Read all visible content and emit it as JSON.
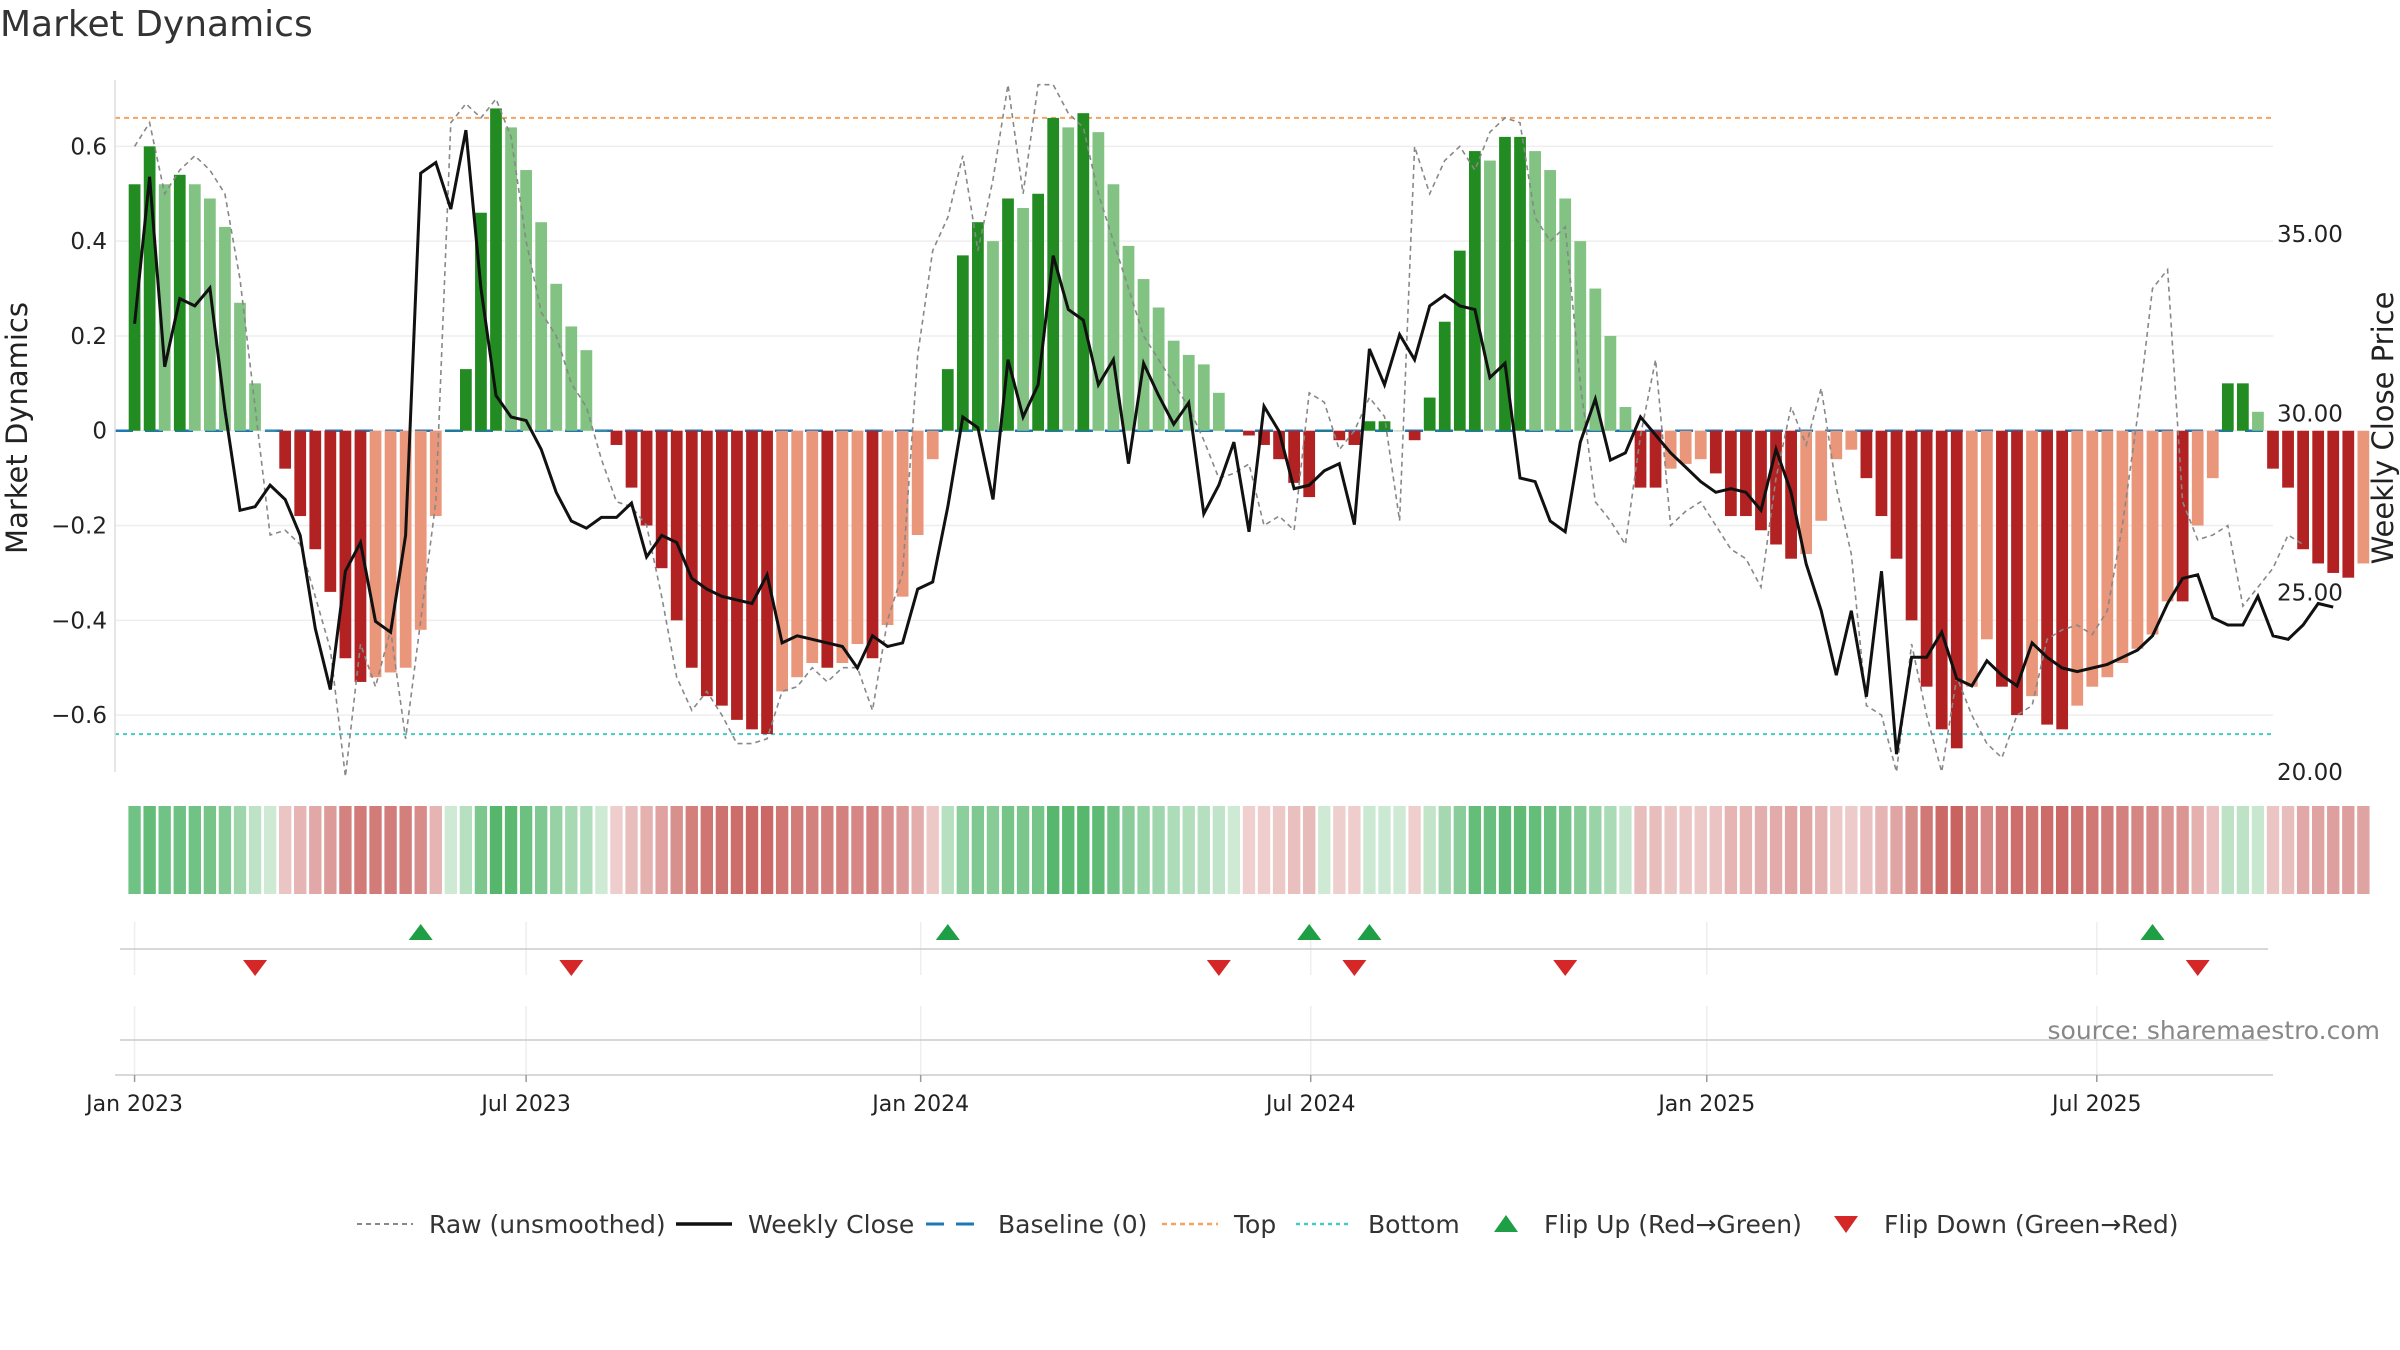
{
  "page": {
    "title": "Market Dynamics"
  },
  "source": "source: sharemaestro.com",
  "chart_data": {
    "type": "bar",
    "title": "Market Dynamics",
    "ylabel": "Market Dynamics",
    "y2label": "Weekly Close Price",
    "ylim": [
      -0.72,
      0.74
    ],
    "y2lim": [
      20.0,
      39.3
    ],
    "y_ticks": [
      {
        "v": 0.6,
        "label": "0.6"
      },
      {
        "v": 0.4,
        "label": "0.4"
      },
      {
        "v": 0.2,
        "label": "0.2"
      },
      {
        "v": 0,
        "label": "0"
      },
      {
        "v": -0.2,
        "label": "−0.2"
      },
      {
        "v": -0.4,
        "label": "−0.4"
      },
      {
        "v": -0.6,
        "label": "−0.6"
      }
    ],
    "y2_ticks": [
      {
        "v": 35,
        "label": "35.00"
      },
      {
        "v": 30,
        "label": "30.00"
      },
      {
        "v": 25,
        "label": "25.00"
      },
      {
        "v": 20,
        "label": "20.00"
      }
    ],
    "x_ticks": [
      {
        "week": 0,
        "label": "Jan 2023"
      },
      {
        "week": 26,
        "label": "Jul 2023"
      },
      {
        "week": 52.2,
        "label": "Jan 2024"
      },
      {
        "week": 78.1,
        "label": "Jul 2024"
      },
      {
        "week": 104.4,
        "label": "Jan 2025"
      },
      {
        "week": 130.3,
        "label": "Jul 2025"
      }
    ],
    "x_range_weeks": [
      -1.3,
      142
    ],
    "grid": true,
    "top_line": 0.66,
    "bottom_line": -0.64,
    "baseline": 0,
    "legend_position": "bottom-center",
    "dynamics": [
      0.52,
      0.6,
      0.52,
      0.54,
      0.52,
      0.49,
      0.43,
      0.27,
      0.1,
      0,
      -0.08,
      -0.18,
      -0.25,
      -0.34,
      -0.48,
      -0.53,
      -0.52,
      -0.51,
      -0.5,
      -0.42,
      -0.18,
      0,
      0.13,
      0.46,
      0.68,
      0.64,
      0.55,
      0.44,
      0.31,
      0.22,
      0.17,
      0,
      -0.03,
      -0.12,
      -0.2,
      -0.29,
      -0.4,
      -0.5,
      -0.56,
      -0.58,
      -0.61,
      -0.63,
      -0.64,
      -0.55,
      -0.52,
      -0.49,
      -0.5,
      -0.49,
      -0.45,
      -0.48,
      -0.41,
      -0.35,
      -0.22,
      -0.06,
      0.13,
      0.37,
      0.44,
      0.4,
      0.49,
      0.47,
      0.5,
      0.66,
      0.64,
      0.67,
      0.63,
      0.52,
      0.39,
      0.32,
      0.26,
      0.19,
      0.16,
      0.14,
      0.08,
      0,
      -0.01,
      -0.03,
      -0.06,
      -0.11,
      -0.14,
      0,
      -0.02,
      -0.03,
      0.02,
      0.02,
      0,
      -0.02,
      0.07,
      0.23,
      0.38,
      0.59,
      0.57,
      0.62,
      0.62,
      0.59,
      0.55,
      0.49,
      0.4,
      0.3,
      0.2,
      0.05,
      -0.12,
      -0.12,
      -0.08,
      -0.07,
      -0.06,
      -0.09,
      -0.18,
      -0.18,
      -0.21,
      -0.24,
      -0.27,
      -0.26,
      -0.19,
      -0.06,
      -0.04,
      -0.1,
      -0.18,
      -0.27,
      -0.4,
      -0.54,
      -0.63,
      -0.67,
      -0.54,
      -0.44,
      -0.54,
      -0.6,
      -0.56,
      -0.62,
      -0.63,
      -0.58,
      -0.54,
      -0.52,
      -0.49,
      -0.46,
      -0.43,
      -0.36,
      -0.36,
      -0.2,
      -0.1,
      0.1,
      0.1,
      0.04,
      -0.08,
      -0.12,
      -0.25,
      -0.28,
      -0.3,
      -0.31,
      -0.28
    ],
    "raw_dynamics": [
      0.6,
      0.65,
      0.5,
      0.55,
      0.58,
      0.55,
      0.5,
      0.32,
      0.05,
      -0.22,
      -0.21,
      -0.24,
      -0.35,
      -0.46,
      -0.73,
      -0.45,
      -0.54,
      -0.42,
      -0.65,
      -0.4,
      -0.15,
      0.65,
      0.69,
      0.66,
      0.7,
      0.62,
      0.4,
      0.25,
      0.2,
      0.1,
      0.05,
      -0.06,
      -0.15,
      -0.16,
      -0.2,
      -0.35,
      -0.52,
      -0.59,
      -0.55,
      -0.6,
      -0.66,
      -0.66,
      -0.65,
      -0.55,
      -0.54,
      -0.5,
      -0.53,
      -0.5,
      -0.5,
      -0.59,
      -0.4,
      -0.3,
      0.16,
      0.38,
      0.45,
      0.58,
      0.38,
      0.53,
      0.73,
      0.5,
      0.73,
      0.73,
      0.67,
      0.64,
      0.5,
      0.4,
      0.3,
      0.2,
      0.15,
      0.1,
      0.05,
      -0.02,
      -0.1,
      -0.09,
      -0.07,
      -0.2,
      -0.18,
      -0.21,
      0.08,
      0.06,
      -0.04,
      0.0,
      0.07,
      0.03,
      -0.19,
      0.6,
      0.5,
      0.57,
      0.6,
      0.55,
      0.63,
      0.66,
      0.65,
      0.45,
      0.4,
      0.43,
      0.1,
      -0.15,
      -0.19,
      -0.24,
      -0.01,
      0.15,
      -0.2,
      -0.17,
      -0.15,
      -0.2,
      -0.25,
      -0.27,
      -0.33,
      -0.1,
      0.05,
      -0.03,
      0.09,
      -0.12,
      -0.26,
      -0.58,
      -0.6,
      -0.72,
      -0.45,
      -0.6,
      -0.72,
      -0.52,
      -0.6,
      -0.66,
      -0.69,
      -0.6,
      -0.58,
      -0.44,
      -0.42,
      -0.41,
      -0.43,
      -0.38,
      -0.2,
      0.03,
      0.3,
      0.34,
      -0.15,
      -0.23,
      -0.22,
      -0.2,
      -0.37,
      -0.33,
      -0.29,
      -0.22,
      -0.24
    ],
    "weekly_close": [
      32.5,
      36.6,
      31.3,
      33.2,
      33.0,
      33.5,
      30.1,
      27.3,
      27.4,
      28.0,
      27.6,
      26.6,
      24.0,
      22.3,
      25.6,
      26.4,
      24.2,
      23.9,
      26.6,
      36.7,
      37.0,
      35.7,
      37.9,
      33.5,
      30.5,
      29.9,
      29.8,
      29.0,
      27.8,
      27.0,
      26.8,
      27.1,
      27.1,
      27.5,
      26.0,
      26.6,
      26.4,
      25.4,
      25.1,
      24.9,
      24.8,
      24.7,
      25.5,
      23.6,
      23.8,
      23.7,
      23.6,
      23.5,
      22.9,
      23.8,
      23.5,
      23.6,
      25.1,
      25.3,
      27.4,
      29.9,
      29.6,
      27.6,
      31.5,
      29.9,
      30.8,
      34.4,
      32.9,
      32.6,
      30.8,
      31.5,
      28.6,
      31.4,
      30.5,
      29.7,
      30.3,
      27.2,
      28.0,
      29.2,
      26.7,
      30.2,
      29.5,
      27.9,
      28.0,
      28.4,
      28.6,
      26.9,
      31.8,
      30.8,
      32.2,
      31.5,
      33.0,
      33.3,
      33.0,
      32.9,
      31.0,
      31.4,
      28.2,
      28.1,
      27.0,
      26.7,
      29.2,
      30.4,
      28.7,
      28.9,
      29.9,
      29.4,
      28.9,
      28.5,
      28.1,
      27.8,
      27.9,
      27.8,
      27.3,
      29.0,
      27.8,
      25.8,
      24.5,
      22.7,
      24.5,
      22.1,
      25.6,
      20.5,
      23.2,
      23.2,
      23.9,
      22.6,
      22.4,
      23.1,
      22.7,
      22.4,
      23.6,
      23.2,
      22.9,
      22.8,
      22.9,
      23.0,
      23.2,
      23.4,
      23.8,
      24.7,
      25.4,
      25.5,
      24.3,
      24.1,
      24.1,
      24.9,
      23.8,
      23.7,
      24.1,
      24.7,
      24.6
    ],
    "flip_up_weeks": [
      19,
      54,
      78,
      82,
      134
    ],
    "flip_down_weeks": [
      8,
      29,
      72,
      81,
      95,
      137
    ],
    "legend": [
      {
        "key": "raw",
        "label": "Raw (unsmoothed)"
      },
      {
        "key": "close",
        "label": "Weekly Close"
      },
      {
        "key": "baseline",
        "label": "Baseline (0)"
      },
      {
        "key": "top",
        "label": "Top"
      },
      {
        "key": "bottom",
        "label": "Bottom"
      },
      {
        "key": "flipup",
        "label": "Flip Up (Red→Green)"
      },
      {
        "key": "flipdown",
        "label": "Flip Down (Green→Red)"
      }
    ],
    "colors": {
      "green_strong": "#228b22",
      "green_light": "#82c282",
      "red_strong": "#b22222",
      "red_light": "#e9967a",
      "raw_line": "#888888",
      "close_line": "#111111",
      "baseline": "#1f77b4",
      "top": "#f4a460",
      "bottom": "#48c9c9",
      "flip_up": "#1e9e45",
      "flip_down": "#d62728"
    }
  }
}
